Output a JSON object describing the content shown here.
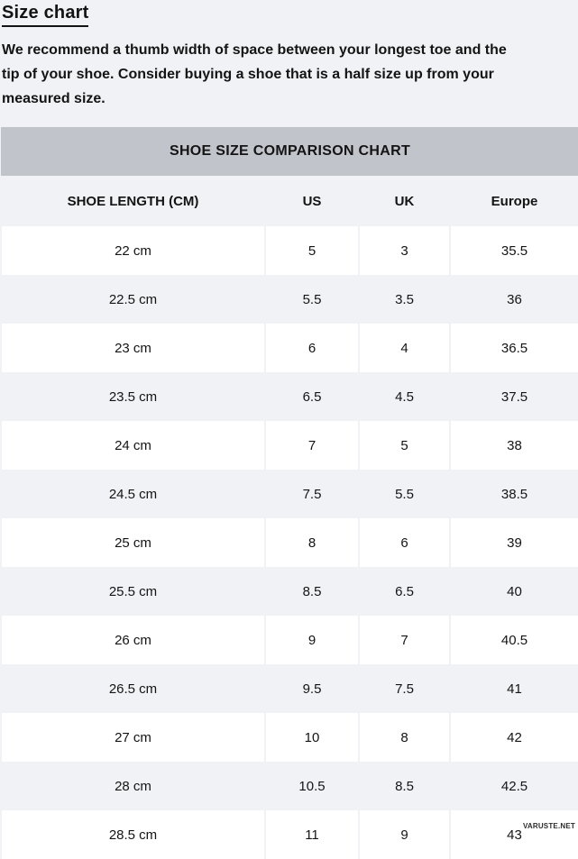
{
  "page": {
    "title": "Size chart",
    "intro": "We recommend a thumb width of space between your longest toe and the tip of your shoe. Consider buying a shoe that is a half size up from your measured size.",
    "watermark": "VARUSTE.NET"
  },
  "chart_data": {
    "type": "table",
    "title": "SHOE SIZE COMPARISON CHART",
    "columns": [
      "SHOE LENGTH (CM)",
      "US",
      "UK",
      "Europe"
    ],
    "rows": [
      [
        "22 cm",
        "5",
        "3",
        "35.5"
      ],
      [
        "22.5 cm",
        "5.5",
        "3.5",
        "36"
      ],
      [
        "23 cm",
        "6",
        "4",
        "36.5"
      ],
      [
        "23.5 cm",
        "6.5",
        "4.5",
        "37.5"
      ],
      [
        "24 cm",
        "7",
        "5",
        "38"
      ],
      [
        "24.5 cm",
        "7.5",
        "5.5",
        "38.5"
      ],
      [
        "25 cm",
        "8",
        "6",
        "39"
      ],
      [
        "25.5 cm",
        "8.5",
        "6.5",
        "40"
      ],
      [
        "26 cm",
        "9",
        "7",
        "40.5"
      ],
      [
        "26.5 cm",
        "9.5",
        "7.5",
        "41"
      ],
      [
        "27 cm",
        "10",
        "8",
        "42"
      ],
      [
        "28 cm",
        "10.5",
        "8.5",
        "42.5"
      ],
      [
        "28.5 cm",
        "11",
        "9",
        "43"
      ]
    ]
  },
  "colors": {
    "page_background": "#f0f2f5",
    "band_background": "#c1c5cb",
    "row_white": "#ffffff",
    "row_alt": "#f0f2f5",
    "text": "#141414"
  }
}
